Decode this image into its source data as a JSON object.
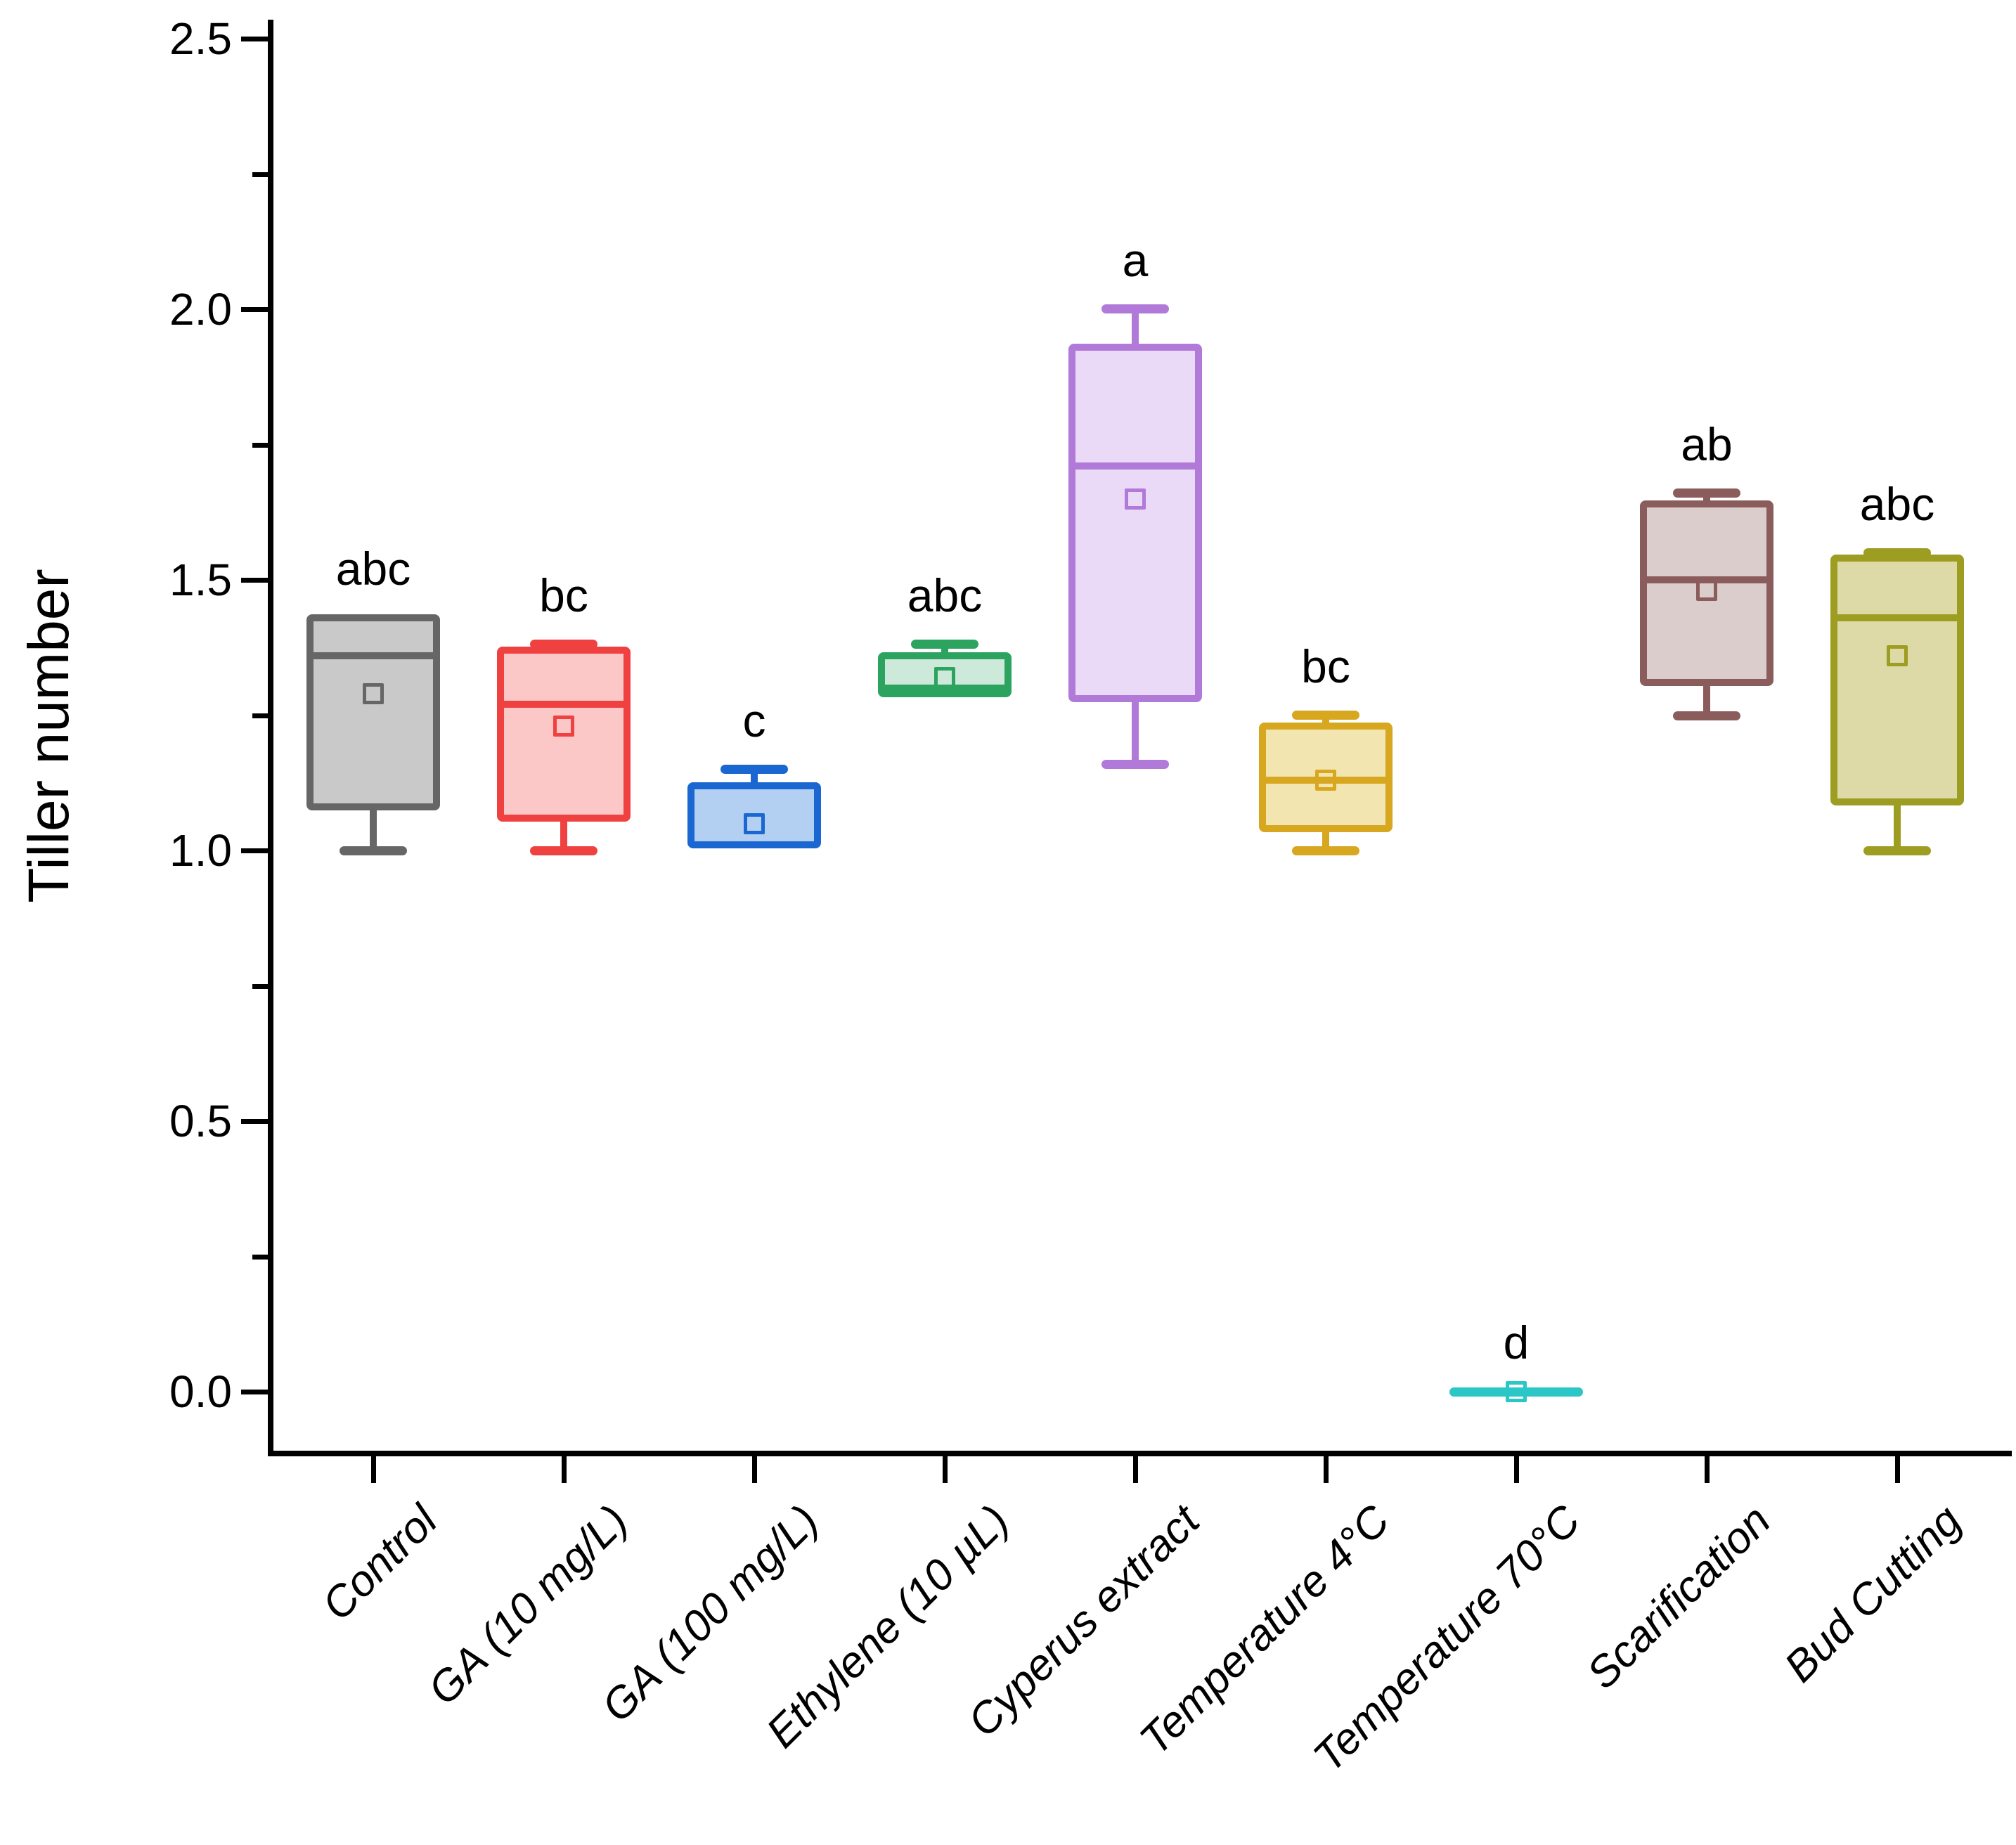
{
  "chart_data": {
    "type": "box",
    "title": "",
    "xlabel": "",
    "ylabel": "Tiller number",
    "ylim": [
      0.0,
      2.5
    ],
    "grid": false,
    "legend": "none",
    "y_ticks_major": [
      {
        "value": 0.0,
        "label": "0.0"
      },
      {
        "value": 0.5,
        "label": "0.5"
      },
      {
        "value": 1.0,
        "label": "1.0"
      },
      {
        "value": 1.5,
        "label": "1.5"
      },
      {
        "value": 2.0,
        "label": "2.0"
      },
      {
        "value": 2.5,
        "label": "2.5"
      }
    ],
    "y_ticks_minor": [
      0.25,
      0.75,
      1.25,
      1.75,
      2.25
    ],
    "categories": [
      {
        "label": "Control",
        "sig_letter": "abc",
        "min": 1.0,
        "q1": 1.08,
        "median": 1.36,
        "q3": 1.43,
        "max": 1.43,
        "mean": 1.29,
        "flat": false,
        "border_color": "#666666",
        "fill_color": "#c9c9c9"
      },
      {
        "label": "GA (10 mg/L)",
        "sig_letter": "bc",
        "min": 1.0,
        "q1": 1.06,
        "median": 1.27,
        "q3": 1.37,
        "max": 1.38,
        "mean": 1.23,
        "flat": false,
        "border_color": "#f04141",
        "fill_color": "#fbc7c7"
      },
      {
        "label": "GA (100 mg/L)",
        "sig_letter": "c",
        "min": 1.01,
        "q1": 1.01,
        "median": 1.12,
        "q3": 1.12,
        "max": 1.15,
        "mean": 1.05,
        "flat": false,
        "border_color": "#1a67d2",
        "fill_color": "#b3d0f2"
      },
      {
        "label": "Ethylene (10 µL)",
        "sig_letter": "abc",
        "min": 1.29,
        "q1": 1.29,
        "median": 1.3,
        "q3": 1.36,
        "max": 1.38,
        "mean": 1.32,
        "flat": false,
        "border_color": "#2da360",
        "fill_color": "#cde9d9"
      },
      {
        "label": "Cyperus extract",
        "sig_letter": "a",
        "min": 1.16,
        "q1": 1.28,
        "median": 1.71,
        "q3": 1.93,
        "max": 2.0,
        "mean": 1.65,
        "flat": false,
        "border_color": "#b179d8",
        "fill_color": "#ebdaf7"
      },
      {
        "label": "Temperature 4°C",
        "sig_letter": "bc",
        "min": 1.0,
        "q1": 1.04,
        "median": 1.13,
        "q3": 1.23,
        "max": 1.25,
        "mean": 1.13,
        "flat": false,
        "border_color": "#d7a71f",
        "fill_color": "#f3e5b0"
      },
      {
        "label": "Temperature 70°C",
        "sig_letter": "d",
        "min": 0.0,
        "q1": 0.0,
        "median": 0.0,
        "q3": 0.0,
        "max": 0.0,
        "mean": 0.0,
        "flat": true,
        "border_color": "#2bc7c7",
        "fill_color": "#2bc7c7"
      },
      {
        "label": "Scarification",
        "sig_letter": "ab",
        "min": 1.25,
        "q1": 1.31,
        "median": 1.5,
        "q3": 1.64,
        "max": 1.66,
        "mean": 1.48,
        "flat": false,
        "border_color": "#8b5c5c",
        "fill_color": "#dccdcd"
      },
      {
        "label": "Bud Cutting",
        "sig_letter": "abc",
        "min": 1.0,
        "q1": 1.09,
        "median": 1.43,
        "q3": 1.54,
        "max": 1.55,
        "mean": 1.36,
        "flat": false,
        "border_color": "#9d9d22",
        "fill_color": "#dedaa8"
      }
    ]
  }
}
